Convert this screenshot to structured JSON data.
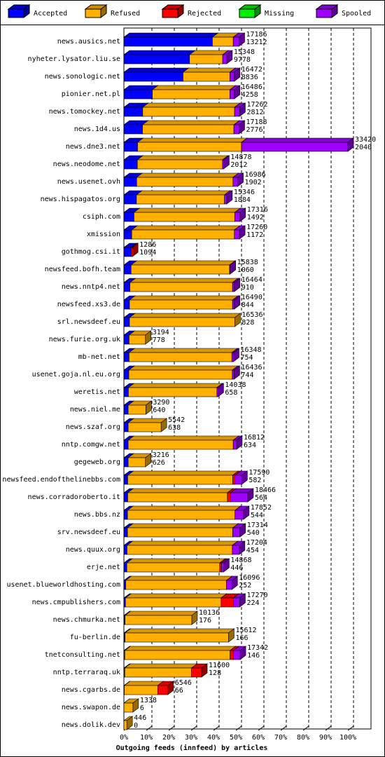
{
  "chart_data": {
    "type": "bar3d",
    "legend": true,
    "grid": true,
    "categories": [
      "news.ausics.net",
      "nyheter.lysator.liu.se",
      "news.sonologic.net",
      "pionier.net.pl",
      "news.tomockey.net",
      "news.1d4.us",
      "news.dne3.net",
      "news.neodome.net",
      "news.usenet.ovh",
      "news.hispagatos.org",
      "csiph.com",
      "xmission",
      "gothmog.csi.it",
      "newsfeed.bofh.team",
      "news.nntp4.net",
      "newsfeed.xs3.de",
      "srl.newsdeef.eu",
      "news.furie.org.uk",
      "mb-net.net",
      "usenet.goja.nl.eu.org",
      "weretis.net",
      "news.niel.me",
      "news.szaf.org",
      "nntp.comgw.net",
      "gegeweb.org",
      "newsfeed.endofthelinebbs.com",
      "news.corradoroberto.it",
      "news.bbs.nz",
      "srv.newsdeef.eu",
      "news.quux.org",
      "erje.net",
      "usenet.blueworldhosting.com",
      "news.cmpublishers.com",
      "news.chmurka.net",
      "fu-berlin.de",
      "tnetconsulting.net",
      "nntp.terraraq.uk",
      "news.cgarbs.de",
      "news.swapon.de",
      "news.dolik.dev"
    ],
    "series": [
      {
        "name": "Accepted",
        "color": "#0000ff",
        "values": [
          39.5,
          29.3,
          26.4,
          12.7,
          8.4,
          8.3,
          6.1,
          6.0,
          5.7,
          5.6,
          4.5,
          3.5,
          3.3,
          3.2,
          2.7,
          2.5,
          2.5,
          2.3,
          2.3,
          2.2,
          2.0,
          1.9,
          1.9,
          1.9,
          1.9,
          1.7,
          1.7,
          1.6,
          1.6,
          1.4,
          1.3,
          0.8,
          0.7,
          0.5,
          0.5,
          0.4,
          0.4,
          0.2,
          0.02,
          0
        ]
      },
      {
        "name": "Refused",
        "color": "#ffb000",
        "values": [
          9.3,
          14.8,
          20.9,
          34.6,
          41.0,
          40.8,
          46.4,
          38.0,
          43.0,
          39.3,
          45.0,
          45.8,
          0,
          44.0,
          45.8,
          46.0,
          47.0,
          7.3,
          45.9,
          46.2,
          39.5,
          7.9,
          14.7,
          46.9,
          7.7,
          46.9,
          44.5,
          48.0,
          47.0,
          47.0,
          41.5,
          45.0,
          42.7,
          29.8,
          46.2,
          47.0,
          29.8,
          14.9,
          4.0,
          1.3
        ]
      },
      {
        "name": "Rejected",
        "color": "#ff0000",
        "values": [
          0,
          0,
          0,
          0,
          0,
          0,
          0,
          0,
          0,
          0,
          0,
          0,
          0.5,
          0,
          0,
          0,
          0,
          0,
          0,
          0,
          0,
          0,
          0,
          0,
          0,
          1.0,
          1.5,
          0,
          0,
          0,
          0.8,
          0,
          5.5,
          0,
          0,
          1.5,
          4.5,
          4.5,
          0,
          0
        ]
      },
      {
        "name": "Missing",
        "color": "#00ee00",
        "values": [
          0,
          0,
          0,
          0,
          0,
          0,
          0,
          0,
          0,
          0,
          0,
          0,
          0,
          0,
          0,
          0,
          0,
          0,
          0,
          0,
          0,
          0,
          0,
          0,
          0,
          0,
          0,
          0,
          0,
          0,
          0,
          0,
          0,
          0,
          0,
          0,
          0,
          0,
          0,
          0
        ]
      },
      {
        "name": "Spooled",
        "color": "#a000ff",
        "values": [
          2.6,
          1.8,
          2.0,
          2.0,
          2.3,
          2.3,
          47.5,
          0.5,
          2.1,
          1.0,
          2.3,
          2.3,
          0,
          0.2,
          0.8,
          0.8,
          0,
          0,
          0.7,
          0.8,
          0.5,
          0,
          0,
          1.5,
          0,
          3.0,
          7.6,
          3.8,
          3.2,
          3.1,
          0.9,
          2.4,
          2.8,
          0,
          0,
          3.0,
          0,
          0,
          0,
          0
        ]
      }
    ],
    "offered": [
      17186,
      15348,
      16472,
      16486,
      17262,
      17188,
      33420,
      14878,
      16986,
      15346,
      17316,
      17260,
      1286,
      15838,
      16464,
      16490,
      16536,
      3194,
      16348,
      16436,
      14038,
      3290,
      5542,
      16812,
      3216,
      17590,
      18466,
      17852,
      17314,
      17204,
      14868,
      16096,
      17270,
      10136,
      15612,
      17342,
      11600,
      6546,
      1338,
      446
    ],
    "accepted": [
      13212,
      9778,
      8836,
      4258,
      2812,
      2776,
      2040,
      2012,
      1902,
      1884,
      1492,
      1172,
      1094,
      1060,
      910,
      844,
      828,
      778,
      754,
      744,
      658,
      640,
      638,
      634,
      626,
      582,
      564,
      544,
      540,
      454,
      446,
      252,
      224,
      176,
      166,
      146,
      128,
      66,
      6,
      0
    ],
    "xlim": [
      0,
      100
    ],
    "xticks": [
      {
        "value": 0,
        "label": "0%"
      },
      {
        "value": 10,
        "label": "10%"
      },
      {
        "value": 20,
        "label": "20%"
      },
      {
        "value": 30,
        "label": "30%"
      },
      {
        "value": 40,
        "label": "40%"
      },
      {
        "value": 50,
        "label": "50%"
      },
      {
        "value": 60,
        "label": "60%"
      },
      {
        "value": 70,
        "label": "70%"
      },
      {
        "value": 80,
        "label": "80%"
      },
      {
        "value": 90,
        "label": "90%"
      },
      {
        "value": 100,
        "label": "100%"
      }
    ],
    "xlabel": "Outgoing feeds (innfeed) by articles"
  }
}
